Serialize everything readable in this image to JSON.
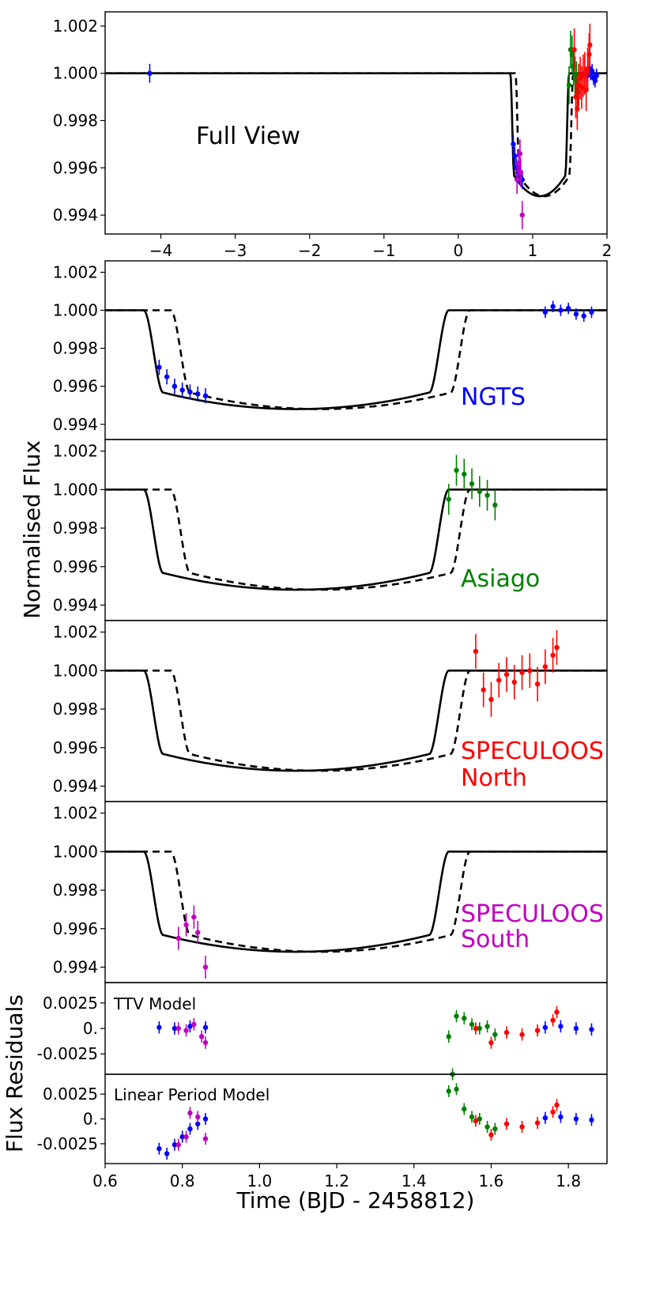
{
  "chart_data": {
    "type": "scatter",
    "xlabel": "Time  (BJD - 2458812)",
    "ylabel": "Normalised Flux",
    "ylabel_residuals": "Flux Residuals",
    "colors": {
      "NGTS": "#0000ff",
      "Asiago": "#008000",
      "SPECULOOS North": "#ff0000",
      "SPECULOOS South": "#c000c0",
      "model": "#000000"
    },
    "panels": [
      {
        "id": "full",
        "label": "Full View",
        "label_color": "#000000",
        "xlim": [
          -4.75,
          2.0
        ],
        "xticks": [
          -4,
          -3,
          -2,
          -1,
          0,
          1,
          2
        ],
        "ylim": [
          0.9932,
          1.0026
        ],
        "yticks": [
          "0.994",
          "0.996",
          "0.998",
          "1.000",
          "1.002"
        ]
      },
      {
        "id": "ngts",
        "label": "NGTS",
        "label_color": "#0000ff",
        "xlim": [
          0.6,
          1.9
        ],
        "ylim": [
          0.9932,
          1.0026
        ],
        "yticks": [
          "0.994",
          "0.996",
          "0.998",
          "1.000",
          "1.002"
        ]
      },
      {
        "id": "asiago",
        "label": "Asiago",
        "label_color": "#008000",
        "xlim": [
          0.6,
          1.9
        ],
        "ylim": [
          0.9932,
          1.0026
        ],
        "yticks": [
          "0.994",
          "0.996",
          "0.998",
          "1.000",
          "1.002"
        ]
      },
      {
        "id": "north",
        "label": "SPECULOOS North",
        "label_color": "#ff0000",
        "xlim": [
          0.6,
          1.9
        ],
        "ylim": [
          0.9932,
          1.0026
        ],
        "yticks": [
          "0.994",
          "0.996",
          "0.998",
          "1.000",
          "1.002"
        ]
      },
      {
        "id": "south",
        "label": "SPECULOOS South",
        "label_color": "#c000c0",
        "xlim": [
          0.6,
          1.9
        ],
        "ylim": [
          0.9932,
          1.0026
        ],
        "yticks": [
          "0.994",
          "0.996",
          "0.998",
          "1.000",
          "1.002"
        ]
      },
      {
        "id": "res_ttv",
        "label": "TTV Model",
        "label_color": "#000000",
        "xlim": [
          0.6,
          1.9
        ],
        "ylim": [
          -0.0045,
          0.0045
        ],
        "yticks": [
          "-0.0025",
          "0.",
          "0.0025"
        ]
      },
      {
        "id": "res_lin",
        "label": "Linear Period Model",
        "label_color": "#000000",
        "xlim": [
          0.6,
          1.9
        ],
        "ylim": [
          -0.0045,
          0.0045
        ],
        "yticks": [
          "-0.0025",
          "0.",
          "0.0025"
        ]
      }
    ],
    "bottom_xticks": [
      "0.6",
      "0.8",
      "1.0",
      "1.2",
      "1.4",
      "1.6",
      "1.8"
    ],
    "model": {
      "depth": 0.9948,
      "ingress_duration": 0.05,
      "solid_t0": 0.7,
      "solid_t1": 1.49,
      "dashed_t0": 0.77,
      "dashed_t1": 1.545
    },
    "series": [
      {
        "name": "NGTS",
        "x": [
          0.74,
          0.76,
          0.78,
          0.8,
          0.82,
          0.84,
          0.86
        ],
        "y": [
          0.997,
          0.9965,
          0.996,
          0.9958,
          0.9957,
          0.9956,
          0.9955
        ],
        "err": 0.0004
      },
      {
        "name": "NGTS",
        "x": [
          1.74,
          1.76,
          1.78,
          1.8,
          1.82,
          1.84,
          1.86
        ],
        "y": [
          0.9999,
          1.0002,
          1.0,
          1.0001,
          0.9998,
          0.9997,
          0.9999
        ],
        "err": 0.0003
      },
      {
        "name": "Asiago",
        "x": [
          1.49,
          1.51,
          1.53,
          1.55,
          1.57,
          1.59,
          1.61
        ],
        "y": [
          0.9995,
          1.001,
          1.0008,
          1.0003,
          0.9999,
          0.9997,
          0.9992
        ],
        "err": 0.0008
      },
      {
        "name": "SPECULOOS North",
        "x": [
          1.56,
          1.58,
          1.6,
          1.62,
          1.64,
          1.66,
          1.68,
          1.7,
          1.72,
          1.74,
          1.76,
          1.77
        ],
        "y": [
          1.001,
          0.999,
          0.9985,
          0.9995,
          0.9998,
          0.9994,
          0.9999,
          1.0,
          0.9993,
          1.0002,
          1.0008,
          1.0012
        ],
        "err": 0.0009
      },
      {
        "name": "SPECULOOS South",
        "x": [
          0.79,
          0.81,
          0.83,
          0.84,
          0.86
        ],
        "y": [
          0.9955,
          0.9962,
          0.9966,
          0.9958,
          0.994
        ],
        "err": 0.0006
      }
    ],
    "residuals_ttv": [
      {
        "name": "NGTS",
        "x": [
          0.74,
          0.78,
          0.82,
          0.86,
          1.74,
          1.78,
          1.82,
          1.86
        ],
        "y": [
          0.0001,
          0.0,
          0.0002,
          0.0001,
          0.0001,
          0.0002,
          0.0,
          -0.0001
        ]
      },
      {
        "name": "Asiago",
        "x": [
          1.49,
          1.51,
          1.53,
          1.55,
          1.57,
          1.59,
          1.61
        ],
        "y": [
          -0.0008,
          0.0012,
          0.001,
          0.0004,
          0.0,
          0.0002,
          -0.0006
        ]
      },
      {
        "name": "SPECULOOS North",
        "x": [
          1.56,
          1.6,
          1.64,
          1.68,
          1.72,
          1.76,
          1.77
        ],
        "y": [
          0.0,
          -0.0014,
          -0.0004,
          -0.0006,
          -0.0002,
          0.0008,
          0.0016
        ]
      },
      {
        "name": "SPECULOOS South",
        "x": [
          0.79,
          0.81,
          0.83,
          0.85,
          0.86
        ],
        "y": [
          0.0,
          -0.0002,
          0.0004,
          -0.0008,
          -0.0014
        ]
      }
    ],
    "residuals_linear": [
      {
        "name": "NGTS",
        "x": [
          0.74,
          0.76,
          0.78,
          0.8,
          0.82,
          0.84,
          0.86,
          1.74,
          1.78,
          1.82,
          1.86
        ],
        "y": [
          -0.003,
          -0.0035,
          -0.0026,
          -0.0018,
          -0.001,
          -0.0005,
          0.0,
          0.0001,
          0.0002,
          0.0,
          -0.0001
        ]
      },
      {
        "name": "Asiago",
        "x": [
          1.49,
          1.5,
          1.51,
          1.53,
          1.55,
          1.57,
          1.59,
          1.61
        ],
        "y": [
          0.0028,
          0.0045,
          0.003,
          0.001,
          0.0002,
          0.0,
          -0.0008,
          -0.001
        ]
      },
      {
        "name": "SPECULOOS North",
        "x": [
          1.56,
          1.6,
          1.64,
          1.68,
          1.72,
          1.76,
          1.77
        ],
        "y": [
          -0.0002,
          -0.0016,
          -0.0005,
          -0.0008,
          -0.0004,
          0.0007,
          0.0014
        ]
      },
      {
        "name": "SPECULOOS South",
        "x": [
          0.79,
          0.81,
          0.82,
          0.84,
          0.86
        ],
        "y": [
          -0.0026,
          -0.0018,
          0.0006,
          0.0002,
          -0.002
        ]
      }
    ]
  }
}
